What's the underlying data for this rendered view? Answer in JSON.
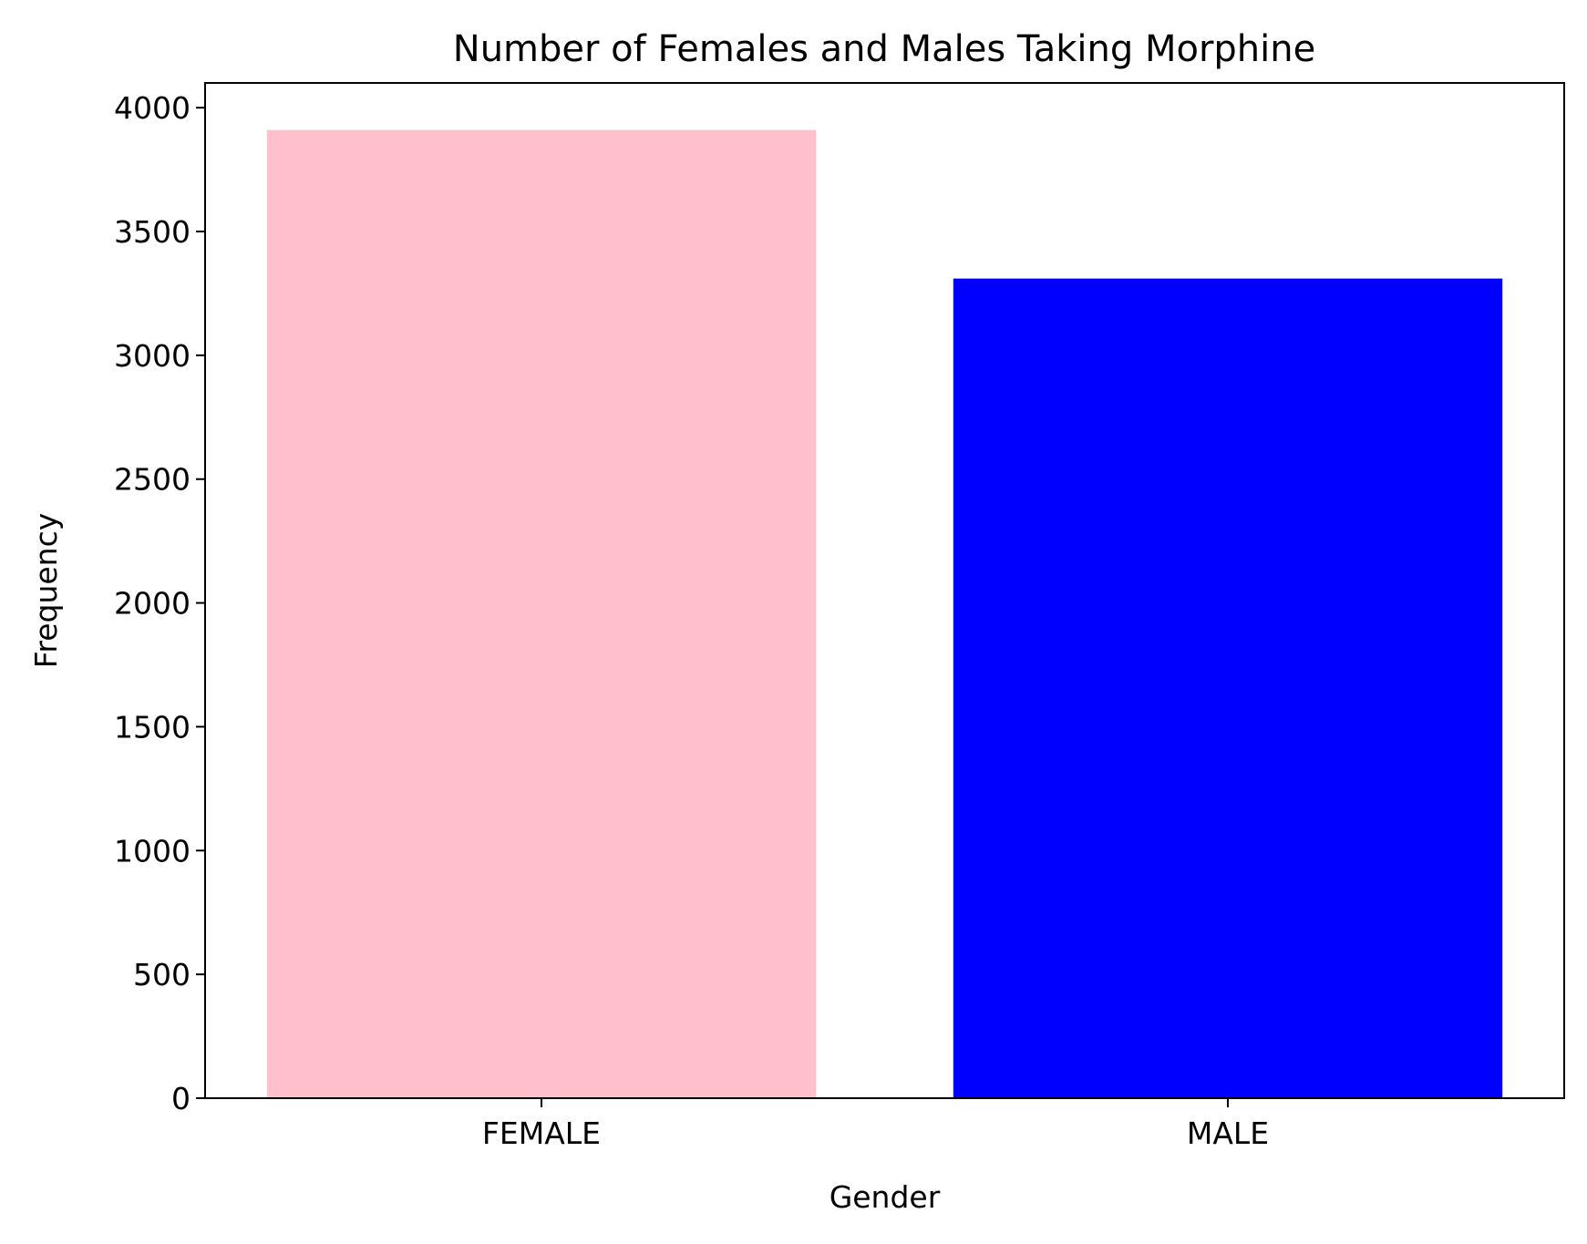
{
  "chart_data": {
    "type": "bar",
    "title": "Number of Females and Males Taking Morphine",
    "xlabel": "Gender",
    "ylabel": "Frequency",
    "categories": [
      "FEMALE",
      "MALE"
    ],
    "values": [
      3910,
      3310
    ],
    "bar_colors": [
      "#ffc0cb",
      "#0000ff"
    ],
    "ylim": [
      0,
      4100
    ],
    "yticks": [
      0,
      500,
      1000,
      1500,
      2000,
      2500,
      3000,
      3500,
      4000
    ],
    "grid": false,
    "legend": "none"
  }
}
